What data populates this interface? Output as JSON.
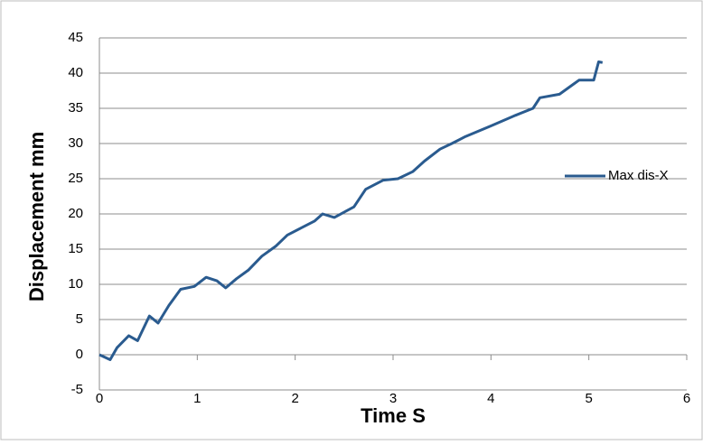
{
  "chart_data": {
    "type": "line",
    "x_label": "Time  S",
    "y_label": "Displacement  mm",
    "x": [
      0,
      0.11,
      0.18,
      0.3,
      0.39,
      0.51,
      0.6,
      0.71,
      0.83,
      0.97,
      1.09,
      1.2,
      1.29,
      1.4,
      1.52,
      1.66,
      1.8,
      1.92,
      2.06,
      2.2,
      2.28,
      2.4,
      2.6,
      2.72,
      2.9,
      3.05,
      3.2,
      3.32,
      3.48,
      3.6,
      3.74,
      4.0,
      4.25,
      4.43,
      4.5,
      4.7,
      4.9,
      5.05,
      5.1,
      5.14
    ],
    "series": [
      {
        "name": "Max dis-X",
        "color": "#2a5b8f",
        "values": [
          0,
          -0.7,
          1,
          2.7,
          2,
          5.5,
          4.5,
          7,
          9.3,
          9.7,
          11,
          10.5,
          9.5,
          10.8,
          12,
          14,
          15.4,
          17,
          18,
          19,
          20,
          19.5,
          21,
          23.5,
          24.8,
          25,
          26,
          27.5,
          29.2,
          30,
          31,
          32.5,
          34,
          35,
          36.5,
          37,
          39,
          39,
          41.6,
          41.5
        ]
      }
    ],
    "xlim": [
      0,
      6
    ],
    "xticks": [
      0,
      1,
      2,
      3,
      4,
      5,
      6
    ],
    "ylim": [
      -5,
      45
    ],
    "yticks": [
      -5,
      0,
      5,
      10,
      15,
      20,
      25,
      30,
      35,
      40,
      45
    ],
    "grid": true,
    "legend": "right"
  }
}
